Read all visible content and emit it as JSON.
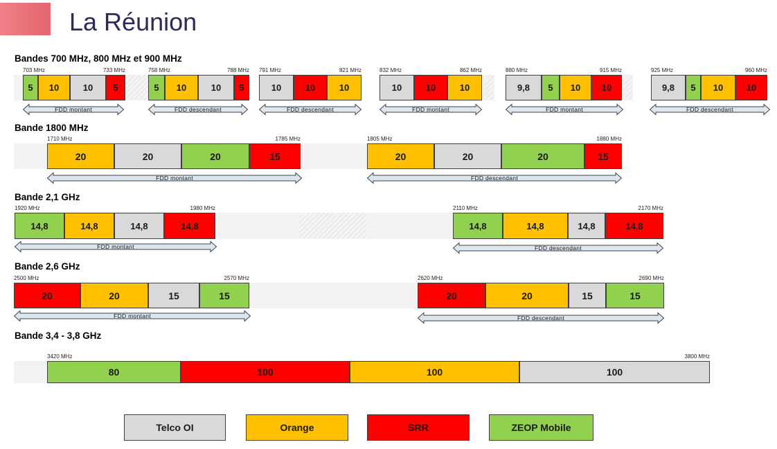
{
  "title": "La Réunion",
  "colors": {
    "telco": "#d9d9d9",
    "orange": "#ffc000",
    "srr": "#ff0000",
    "zeop": "#92d050"
  },
  "sections": [
    {
      "title": "Bandes 700 MHz, 800 MHz et 900 MHz",
      "blocks": [
        {
          "start": "703 MHz",
          "end": "733 MHz",
          "direction": "FDD montant",
          "segments": [
            {
              "label": "5",
              "op": "zeop"
            },
            {
              "label": "10",
              "op": "orange"
            },
            {
              "label": "10",
              "op": "telco"
            },
            {
              "label": "5",
              "op": "srr"
            }
          ]
        },
        {
          "start": "758 MHz",
          "end": "788 MHz",
          "direction": "FDD descendant",
          "segments": [
            {
              "label": "5",
              "op": "zeop"
            },
            {
              "label": "10",
              "op": "orange"
            },
            {
              "label": "10",
              "op": "telco"
            },
            {
              "label": "5",
              "op": "srr"
            }
          ]
        },
        {
          "start": "791 MHz",
          "end": "821 MHz",
          "direction": "FDD descendant",
          "segments": [
            {
              "label": "10",
              "op": "telco"
            },
            {
              "label": "10",
              "op": "srr"
            },
            {
              "label": "10",
              "op": "orange"
            }
          ]
        },
        {
          "start": "832 MHz",
          "end": "862 MHz",
          "direction": "FDD montant",
          "segments": [
            {
              "label": "10",
              "op": "telco"
            },
            {
              "label": "10",
              "op": "srr"
            },
            {
              "label": "10",
              "op": "orange"
            }
          ]
        },
        {
          "start": "880 MHz",
          "end": "915 MHz",
          "direction": "FDD montant",
          "segments": [
            {
              "label": "9,8",
              "op": "telco"
            },
            {
              "label": "5",
              "op": "zeop"
            },
            {
              "label": "10",
              "op": "orange"
            },
            {
              "label": "10",
              "op": "srr"
            }
          ]
        },
        {
          "start": "925 MHz",
          "end": "960 MHz",
          "direction": "FDD descendant",
          "segments": [
            {
              "label": "9,8",
              "op": "telco"
            },
            {
              "label": "5",
              "op": "zeop"
            },
            {
              "label": "10",
              "op": "orange"
            },
            {
              "label": "10",
              "op": "srr"
            }
          ]
        }
      ]
    },
    {
      "title": "Bande 1800 MHz",
      "blocks": [
        {
          "start": "1710 MHz",
          "end": "1785 MHz",
          "direction": "FDD montant",
          "segments": [
            {
              "label": "20",
              "op": "orange"
            },
            {
              "label": "20",
              "op": "telco"
            },
            {
              "label": "20",
              "op": "zeop"
            },
            {
              "label": "15",
              "op": "srr"
            }
          ]
        },
        {
          "start": "1805 MHz",
          "end": "1880 MHz",
          "direction": "FDD descendant",
          "segments": [
            {
              "label": "20",
              "op": "orange"
            },
            {
              "label": "20",
              "op": "telco"
            },
            {
              "label": "20",
              "op": "zeop"
            },
            {
              "label": "15",
              "op": "srr"
            }
          ]
        }
      ]
    },
    {
      "title": "Bande 2,1 GHz",
      "blocks": [
        {
          "start": "1920 MHz",
          "end": "1980 MHz",
          "direction": "FDD montant",
          "segments": [
            {
              "label": "14,8",
              "op": "zeop"
            },
            {
              "label": "14,8",
              "op": "orange"
            },
            {
              "label": "14,8",
              "op": "telco"
            },
            {
              "label": "14,8",
              "op": "srr"
            }
          ]
        },
        {
          "start": "2110 MHz",
          "end": "2170 MHz",
          "direction": "FDD descendant",
          "segments": [
            {
              "label": "14,8",
              "op": "zeop"
            },
            {
              "label": "14,8",
              "op": "orange"
            },
            {
              "label": "14,8",
              "op": "telco"
            },
            {
              "label": "14,8",
              "op": "srr"
            }
          ]
        }
      ]
    },
    {
      "title": "Bande 2,6 GHz",
      "blocks": [
        {
          "start": "2500 MHz",
          "end": "2570 MHz",
          "direction": "FDD montant",
          "segments": [
            {
              "label": "20",
              "op": "srr"
            },
            {
              "label": "20",
              "op": "orange"
            },
            {
              "label": "15",
              "op": "telco"
            },
            {
              "label": "15",
              "op": "zeop"
            }
          ]
        },
        {
          "start": "2620 MHz",
          "end": "2690 MHz",
          "direction": "FDD descendant",
          "segments": [
            {
              "label": "20",
              "op": "srr"
            },
            {
              "label": "20",
              "op": "orange"
            },
            {
              "label": "15",
              "op": "telco"
            },
            {
              "label": "15",
              "op": "zeop"
            }
          ]
        }
      ]
    },
    {
      "title": "Bande 3,4 - 3,8 GHz",
      "blocks": [
        {
          "start": "3420 MHz",
          "end": "3800 MHz",
          "direction": "",
          "segments": [
            {
              "label": "80",
              "op": "zeop"
            },
            {
              "label": "100",
              "op": "srr"
            },
            {
              "label": "100",
              "op": "orange"
            },
            {
              "label": "100",
              "op": "telco"
            }
          ]
        }
      ]
    }
  ],
  "legend": [
    {
      "label": "Telco OI",
      "op": "telco"
    },
    {
      "label": "Orange",
      "op": "orange"
    },
    {
      "label": "SRR",
      "op": "srr"
    },
    {
      "label": "ZEOP Mobile",
      "op": "zeop"
    }
  ]
}
